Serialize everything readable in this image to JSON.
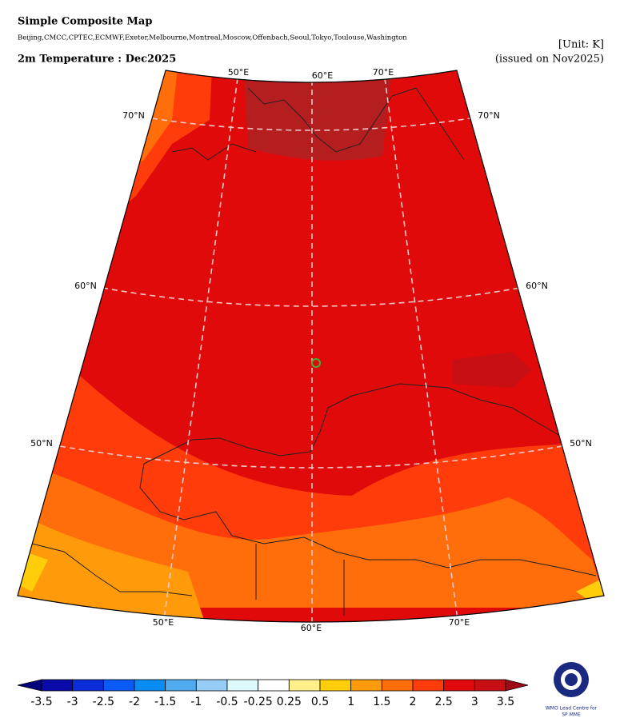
{
  "header": {
    "title": "Simple Composite Map",
    "centres": "Beijing,CMCC,CPTEC,ECMWF,Exeter,Melbourne,Montreal,Moscow,Offenbach,Seoul,Tokyo,Toulouse,Washington",
    "unit": "[Unit: K]",
    "variable": "2m Temperature : Dec2025",
    "issued": "(issued on Nov2025)"
  },
  "map": {
    "lon_labels_top": [
      "50°E",
      "60°E",
      "70°E"
    ],
    "lon_labels_bottom": [
      "50°E",
      "60°E",
      "70°E"
    ],
    "lat_labels": [
      "70°N",
      "60°N",
      "50°N"
    ]
  },
  "colorbar": {
    "ticks": [
      -3.5,
      -3,
      -2.5,
      -2,
      -1.5,
      -1,
      -0.5,
      -0.25,
      0.25,
      0.5,
      1,
      1.5,
      2,
      2.5,
      3,
      3.5
    ],
    "colors": [
      "#0a0aa8",
      "#0b2ed8",
      "#0a5af5",
      "#0a8cf5",
      "#50aaf0",
      "#96cdf5",
      "#dcfafa",
      "#ffffff",
      "#fff08c",
      "#ffcd0a",
      "#ff9b0a",
      "#ff6e0a",
      "#ff3c0a",
      "#e10a0a",
      "#c80f14"
    ],
    "under_color": "#00007d",
    "over_color": "#a00a14"
  },
  "logo": {
    "line1": "WMO Lead Centre for",
    "line2": "SP MME"
  }
}
